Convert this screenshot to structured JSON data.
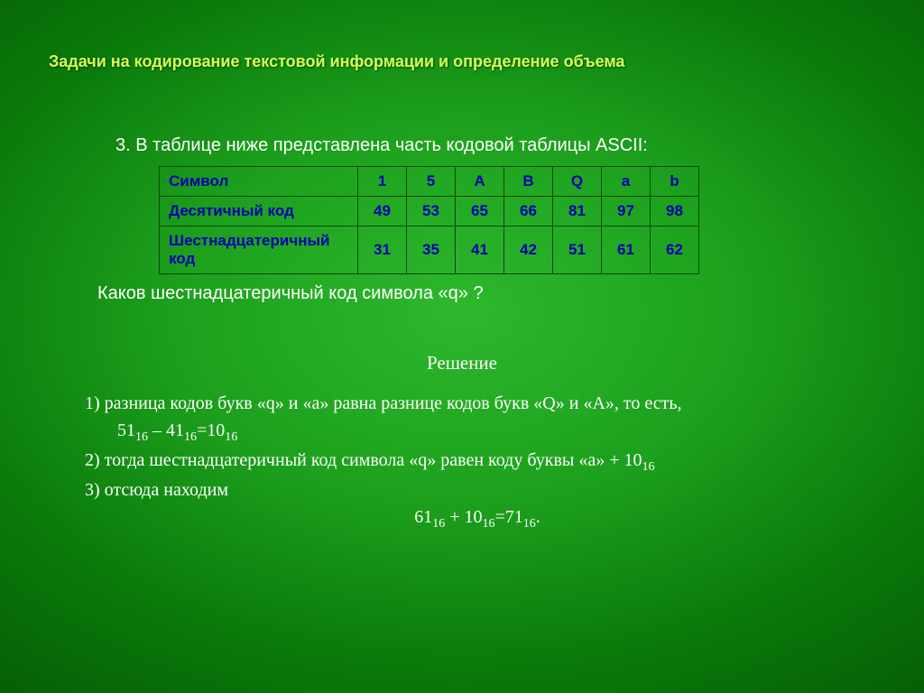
{
  "title": "Задачи на кодирование текстовой информации и определение объема",
  "problem": "3. В таблице ниже представлена часть кодовой таблицы ASCII:",
  "table": {
    "border_color": "#0a4a0a",
    "text_color": "#0000b0",
    "rows": [
      {
        "header": "Символ",
        "cells": [
          "1",
          "5",
          "A",
          "B",
          "Q",
          "a",
          "b"
        ]
      },
      {
        "header": "Десятичный код",
        "cells": [
          "49",
          "53",
          "65",
          "66",
          "81",
          "97",
          "98"
        ]
      },
      {
        "header": "Шестнадцатеричный код",
        "cells": [
          "31",
          "35",
          "41",
          "42",
          "51",
          "61",
          "62"
        ]
      }
    ]
  },
  "question": "Каков шестнадцатеричный код символа «q» ?",
  "solution_title": "Решение",
  "solution": {
    "line1_a": "1)  разница кодов букв «q» и «a» равна разнице кодов букв «Q» и «A», то есть,",
    "line1_eq_a": "51",
    "line1_eq_b": "41",
    "line1_eq_c": "10",
    "line2_a": "2)  тогда шестнадцатеричный код символа «q» равен коду буквы «a» + 10",
    "line3": "3)   отсюда находим",
    "line4_a": "61",
    "line4_b": "10",
    "line4_c": "71"
  },
  "style": {
    "title_color": "#d4ff5a",
    "body_color": "#ffffff",
    "background_center": "#2db82d",
    "background_edge": "#045504",
    "title_fontsize": 18,
    "body_fontsize": 20,
    "solution_font": "Times New Roman"
  }
}
